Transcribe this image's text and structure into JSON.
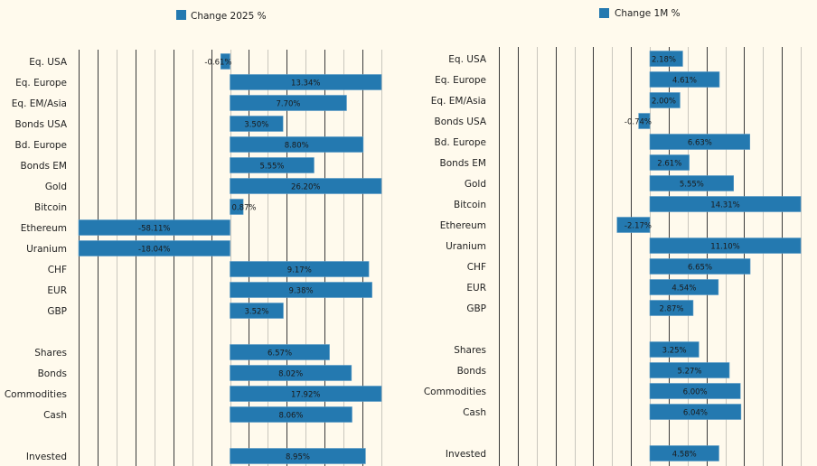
{
  "chart_data": [
    {
      "type": "bar",
      "orientation": "horizontal",
      "legend": "Change 2025 %",
      "legend_position": "top-center",
      "xlim": [
        -10,
        10
      ],
      "grid_step": 1.25,
      "color": "#2479b0",
      "categories": [
        "Eq. USA",
        "Eq. Europe",
        "Eq. EM/Asia",
        "Bonds USA",
        "Bd.  Europe",
        "Bonds EM",
        "Gold",
        "Bitcoin",
        "Ethereum",
        "Uranium",
        "CHF",
        "EUR",
        "GBP",
        "",
        "Shares",
        "Bonds",
        "Commodities",
        "Cash",
        "",
        "Invested"
      ],
      "values": [
        -0.61,
        13.34,
        7.7,
        3.5,
        8.8,
        5.55,
        26.2,
        0.87,
        -58.11,
        -18.04,
        9.17,
        9.38,
        3.52,
        null,
        6.57,
        8.02,
        17.92,
        8.06,
        null,
        8.95
      ],
      "value_labels": [
        "-0.61%",
        "13.34%",
        "7.70%",
        "3.50%",
        "8.80%",
        "5.55%",
        "26.20%",
        "0.87%",
        "-58.11%",
        "-18.04%",
        "9.17%",
        "9.38%",
        "3.52%",
        "",
        "6.57%",
        "8.02%",
        "17.92%",
        "8.06%",
        "",
        "8.95%"
      ]
    },
    {
      "type": "bar",
      "orientation": "horizontal",
      "legend": "Change 1M %",
      "legend_position": "top-center",
      "xlim": [
        -10,
        10
      ],
      "grid_step": 1.25,
      "color": "#2479b0",
      "categories": [
        "Eq. USA",
        "Eq. Europe",
        "Eq. EM/Asia",
        "Bonds USA",
        "Bd.  Europe",
        "Bonds EM",
        "Gold",
        "Bitcoin",
        "Ethereum",
        "Uranium",
        "CHF",
        "EUR",
        "GBP",
        "",
        "Shares",
        "Bonds",
        "Commodities",
        "Cash",
        "",
        "Invested"
      ],
      "values": [
        2.18,
        4.61,
        2.0,
        -0.74,
        6.63,
        2.61,
        5.55,
        14.31,
        -2.17,
        11.1,
        6.65,
        4.54,
        2.87,
        null,
        3.25,
        5.27,
        6.0,
        6.04,
        null,
        4.58
      ],
      "value_labels": [
        "2.18%",
        "4.61%",
        "2.00%",
        "-0.74%",
        "6.63%",
        "2.61%",
        "5.55%",
        "14.31%",
        "-2.17%",
        "11.10%",
        "6.65%",
        "4.54%",
        "2.87%",
        "",
        "3.25%",
        "5.27%",
        "6.00%",
        "6.04%",
        "",
        "4.58%"
      ]
    }
  ]
}
